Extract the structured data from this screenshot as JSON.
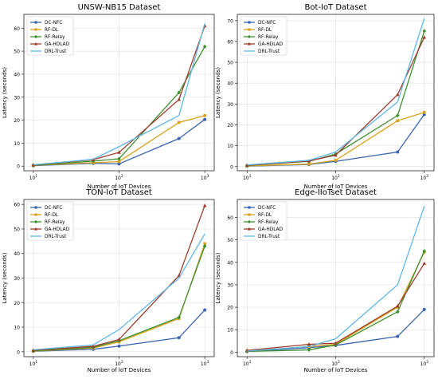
{
  "figure": {
    "x_axis_label": "Number of IoT Devices",
    "y_axis_label": "Latency (seconds)",
    "legend_labels": [
      "DC-NFC",
      "RF-DL",
      "RF-Relay",
      "GA-HDLAD",
      "DRL-Trust"
    ]
  },
  "colors": {
    "DC-NFC": "#3a64b0",
    "RF-DL": "#d9a21b",
    "RF-Relay": "#3d8f2f",
    "GA-HDLAD": "#9b3b2a",
    "DRL-Trust": "#5fb7e6"
  },
  "chart_data": [
    {
      "type": "line",
      "title": "UNSW-NB15 Dataset",
      "xlabel": "Number of IoT Devices",
      "ylabel": "Latency (seconds)",
      "x_scale": "log",
      "x": [
        10,
        50,
        100,
        500,
        1000
      ],
      "xlim": [
        10,
        1000
      ],
      "ylim": [
        -2,
        66
      ],
      "y_ticks": [
        0,
        10,
        20,
        30,
        40,
        50,
        60
      ],
      "grid": true,
      "legend_position": "upper-left",
      "series": [
        {
          "name": "DC-NFC",
          "values": [
            0.2,
            1.2,
            1.0,
            12.0,
            20.3
          ]
        },
        {
          "name": "RF-DL",
          "values": [
            0.3,
            1.5,
            2.0,
            19.0,
            22.0
          ]
        },
        {
          "name": "RF-Relay",
          "values": [
            0.3,
            2.2,
            3.2,
            32.0,
            52.0
          ]
        },
        {
          "name": "GA-HDLAD",
          "values": [
            0.5,
            2.8,
            6.0,
            29.0,
            61.0
          ]
        },
        {
          "name": "DRL-Trust",
          "values": [
            0.6,
            3.0,
            8.5,
            22.0,
            62.0
          ]
        }
      ]
    },
    {
      "type": "line",
      "title": "Bot-IoT Dataset",
      "xlabel": "Number of IoT Devices",
      "ylabel": "Latency (seconds)",
      "x_scale": "log",
      "x": [
        10,
        50,
        100,
        500,
        1000
      ],
      "xlim": [
        10,
        1000
      ],
      "ylim": [
        -2,
        73
      ],
      "y_ticks": [
        0,
        10,
        20,
        30,
        40,
        50,
        60,
        70
      ],
      "grid": true,
      "legend_position": "upper-left",
      "series": [
        {
          "name": "DC-NFC",
          "values": [
            0.2,
            1.0,
            2.5,
            7.0,
            25.0
          ]
        },
        {
          "name": "RF-DL",
          "values": [
            0.3,
            1.2,
            3.0,
            22.0,
            26.0
          ]
        },
        {
          "name": "RF-Relay",
          "values": [
            0.5,
            2.5,
            6.0,
            24.5,
            65.0
          ]
        },
        {
          "name": "GA-HDLAD",
          "values": [
            0.6,
            2.7,
            5.5,
            34.5,
            62.0
          ]
        },
        {
          "name": "DRL-Trust",
          "values": [
            0.8,
            3.0,
            7.0,
            31.0,
            71.0
          ]
        }
      ]
    },
    {
      "type": "line",
      "title": "TON-IoT Dataset",
      "xlabel": "Number of IoT Devices",
      "ylabel": "Latency (seconds)",
      "x_scale": "log",
      "x": [
        10,
        50,
        100,
        500,
        1000
      ],
      "xlim": [
        10,
        1000
      ],
      "ylim": [
        -2,
        62
      ],
      "y_ticks": [
        0,
        10,
        20,
        30,
        40,
        50,
        60
      ],
      "grid": true,
      "legend_position": "upper-left",
      "series": [
        {
          "name": "DC-NFC",
          "values": [
            0.2,
            1.0,
            2.3,
            5.7,
            17.0
          ]
        },
        {
          "name": "RF-DL",
          "values": [
            0.3,
            1.5,
            4.0,
            13.5,
            44.0
          ]
        },
        {
          "name": "RF-Relay",
          "values": [
            0.4,
            1.8,
            4.5,
            14.0,
            43.0
          ]
        },
        {
          "name": "GA-HDLAD",
          "values": [
            0.6,
            2.2,
            5.0,
            31.0,
            59.5
          ]
        },
        {
          "name": "DRL-Trust",
          "values": [
            0.8,
            2.8,
            9.0,
            30.0,
            48.0
          ]
        }
      ]
    },
    {
      "type": "line",
      "title": "Edge-IIoTset Dataset",
      "xlabel": "Number of IoT Devices",
      "ylabel": "Latency (seconds)",
      "x_scale": "log",
      "x": [
        10,
        50,
        100,
        500,
        1000
      ],
      "xlim": [
        10,
        1000
      ],
      "ylim": [
        -2,
        68
      ],
      "y_ticks": [
        0,
        10,
        20,
        30,
        40,
        50,
        60
      ],
      "grid": true,
      "legend_position": "upper-left",
      "series": [
        {
          "name": "DC-NFC",
          "values": [
            0.3,
            2.0,
            3.0,
            7.0,
            19.0
          ]
        },
        {
          "name": "RF-DL",
          "values": [
            0.5,
            2.5,
            3.5,
            20.0,
            44.5
          ]
        },
        {
          "name": "RF-Relay",
          "values": [
            0.3,
            1.0,
            3.2,
            18.0,
            45.0
          ]
        },
        {
          "name": "GA-HDLAD",
          "values": [
            0.8,
            3.5,
            4.0,
            20.5,
            39.5
          ]
        },
        {
          "name": "DRL-Trust",
          "values": [
            0.5,
            2.5,
            6.0,
            30.0,
            65.0
          ]
        }
      ]
    }
  ]
}
